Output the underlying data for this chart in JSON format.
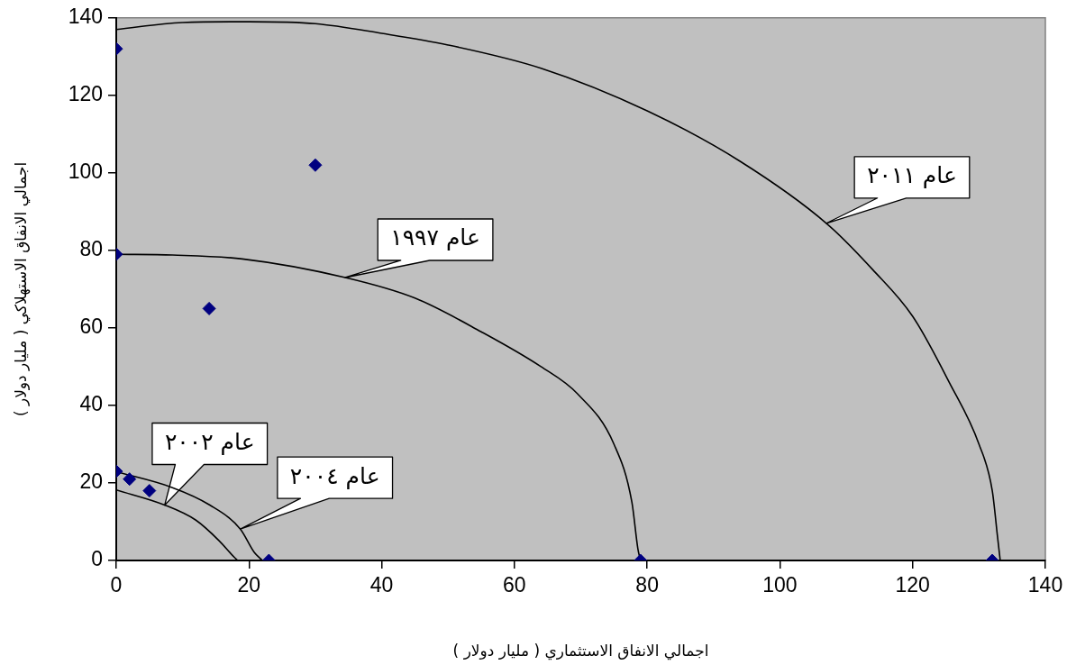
{
  "chart_data": {
    "type": "scatter",
    "xlabel": "اجمالي الانفاق الاستثماري ( مليار دولار )",
    "ylabel": "اجمالي الانفاق الاستهلاكي ( مليار دولار )",
    "xlim": [
      0,
      140
    ],
    "xticks": [
      0,
      20,
      40,
      60,
      80,
      100,
      120,
      140
    ],
    "ylim": [
      0,
      140
    ],
    "yticks": [
      0,
      20,
      40,
      60,
      80,
      100,
      120,
      140
    ],
    "grid": false,
    "legend": false,
    "series": [
      {
        "marker": "diamond",
        "color": "#000080",
        "x": [
          0,
          30,
          0,
          14,
          0,
          2,
          5,
          23,
          79,
          132
        ],
        "values": [
          132,
          102,
          79,
          65,
          23,
          21,
          18,
          0,
          0,
          0
        ]
      },
      {
        "type": "line",
        "marker": "none",
        "color": "#000000",
        "x": [
          0,
          10,
          20,
          30,
          40,
          50,
          64,
          80,
          94,
          107,
          114,
          120,
          125.5,
          130,
          132,
          132.8,
          133.2
        ],
        "values": [
          137,
          138.8,
          139,
          138.5,
          136,
          133,
          127,
          116,
          103,
          87,
          75,
          63,
          46,
          30,
          18,
          6,
          0
        ]
      },
      {
        "type": "line",
        "marker": "none",
        "color": "#000000",
        "x": [
          0,
          8.5,
          19,
          34.5,
          45,
          55,
          64,
          69.5,
          75,
          77.7,
          78.6,
          79
        ],
        "values": [
          79,
          78.8,
          77.8,
          73,
          67.7,
          59,
          50,
          43,
          30,
          15,
          3,
          0
        ]
      },
      {
        "type": "line",
        "marker": "none",
        "color": "#000000",
        "x": [
          0,
          7.3,
          12,
          15.5,
          17.8,
          18.3
        ],
        "values": [
          18.2,
          14.3,
          10.4,
          5.1,
          0.8,
          0
        ]
      },
      {
        "type": "line",
        "marker": "none",
        "color": "#000000",
        "x": [
          0,
          8.3,
          14.1,
          18.7,
          20.8,
          22
        ],
        "values": [
          22.9,
          18.9,
          14.3,
          8.1,
          2.1,
          0
        ]
      }
    ],
    "annotations": [
      {
        "text": "عام ٢٠١١",
        "x": 107,
        "y": 87
      },
      {
        "text": "عام ١٩٩٧",
        "x": 34.5,
        "y": 73
      },
      {
        "text": "عام ٢٠٠٢",
        "x": 7.3,
        "y": 14.3
      },
      {
        "text": "عام ٢٠٠٤",
        "x": 18.7,
        "y": 8.1
      }
    ]
  }
}
